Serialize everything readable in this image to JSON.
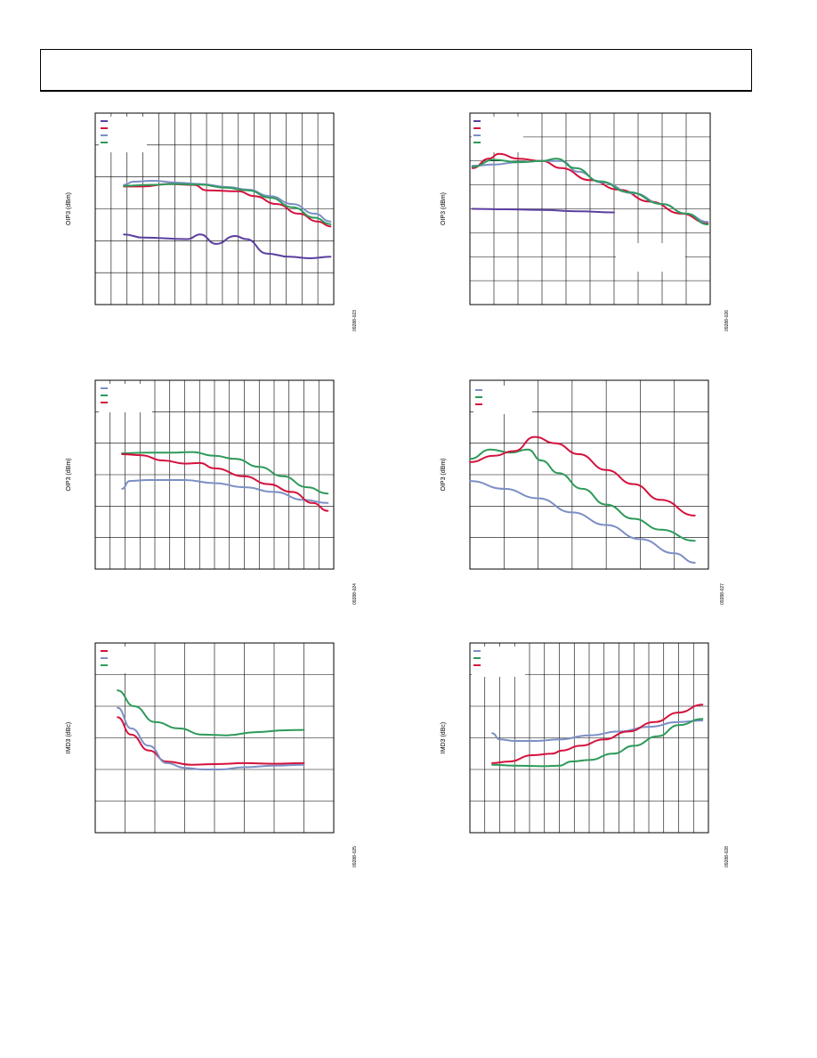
{
  "page": {
    "header_text": ""
  },
  "colors": {
    "purple": "#5b3ea0",
    "red": "#d4123d",
    "blue": "#7b8fc4",
    "green": "#2e9a5a"
  },
  "chart_data": [
    {
      "type": "line",
      "ylabel": "OIP3 (dBm)",
      "fig_code": "09288-023",
      "grid": true,
      "xlim": [
        0,
        15
      ],
      "ylim": [
        0,
        6
      ],
      "legend_placement": "top-left",
      "series": [
        {
          "color": "purple",
          "points": [
            [
              1.8,
              2.2
            ],
            [
              3,
              2.1
            ],
            [
              5.8,
              2.05
            ],
            [
              6.6,
              2.2
            ],
            [
              7.6,
              1.9
            ],
            [
              8.8,
              2.15
            ],
            [
              9.5,
              2.05
            ],
            [
              10.8,
              1.6
            ],
            [
              12.2,
              1.5
            ],
            [
              13.5,
              1.45
            ],
            [
              14.8,
              1.5
            ]
          ]
        },
        {
          "color": "red",
          "points": [
            [
              1.8,
              3.7
            ],
            [
              3,
              3.7
            ],
            [
              4.6,
              3.78
            ],
            [
              6.2,
              3.75
            ],
            [
              7,
              3.58
            ],
            [
              9,
              3.55
            ],
            [
              10,
              3.4
            ],
            [
              11.4,
              3.15
            ],
            [
              12.8,
              2.85
            ],
            [
              14,
              2.6
            ],
            [
              14.8,
              2.45
            ]
          ]
        },
        {
          "color": "blue",
          "points": [
            [
              1.8,
              3.75
            ],
            [
              2.4,
              3.85
            ],
            [
              3.6,
              3.88
            ],
            [
              5.2,
              3.82
            ],
            [
              6.6,
              3.78
            ],
            [
              8.4,
              3.68
            ],
            [
              9.6,
              3.6
            ],
            [
              11,
              3.4
            ],
            [
              12.4,
              3.15
            ],
            [
              13.8,
              2.85
            ],
            [
              14.8,
              2.6
            ]
          ]
        },
        {
          "color": "green",
          "points": [
            [
              1.8,
              3.72
            ],
            [
              3.4,
              3.75
            ],
            [
              5,
              3.78
            ],
            [
              6.6,
              3.76
            ],
            [
              8.2,
              3.66
            ],
            [
              9.6,
              3.58
            ],
            [
              11,
              3.35
            ],
            [
              12.4,
              3.05
            ],
            [
              13.8,
              2.72
            ],
            [
              14.8,
              2.52
            ]
          ]
        }
      ]
    },
    {
      "type": "line",
      "ylabel": "OIP3 (dBm)",
      "fig_code": "09288-026",
      "grid": true,
      "xlim": [
        0,
        10
      ],
      "ylim": [
        0,
        8
      ],
      "legend_placement": "top-left",
      "series": [
        {
          "color": "purple",
          "points": [
            [
              0.1,
              4
            ],
            [
              1.5,
              3.98
            ],
            [
              3,
              3.95
            ],
            [
              4.5,
              3.9
            ],
            [
              6,
              3.85
            ]
          ]
        },
        {
          "color": "red",
          "points": [
            [
              0.1,
              5.7
            ],
            [
              0.8,
              6.1
            ],
            [
              1.2,
              6.3
            ],
            [
              2,
              6.1
            ],
            [
              3,
              6
            ],
            [
              3.8,
              5.7
            ],
            [
              5,
              5.2
            ],
            [
              6.2,
              4.8
            ],
            [
              7.5,
              4.3
            ],
            [
              8.8,
              3.8
            ],
            [
              9.9,
              3.4
            ]
          ]
        },
        {
          "color": "blue",
          "points": [
            [
              0.1,
              5.8
            ],
            [
              1,
              5.85
            ],
            [
              2,
              5.95
            ],
            [
              3,
              6
            ],
            [
              3.8,
              6
            ],
            [
              4.5,
              5.55
            ],
            [
              5.5,
              5.1
            ],
            [
              6.8,
              4.65
            ],
            [
              8,
              4.2
            ],
            [
              9,
              3.8
            ],
            [
              9.9,
              3.45
            ]
          ]
        },
        {
          "color": "green",
          "points": [
            [
              0.1,
              5.75
            ],
            [
              1,
              6.05
            ],
            [
              2,
              5.95
            ],
            [
              3,
              6
            ],
            [
              3.6,
              6.1
            ],
            [
              4.4,
              5.7
            ],
            [
              5.4,
              5.15
            ],
            [
              6.6,
              4.7
            ],
            [
              8,
              4.2
            ],
            [
              9,
              3.8
            ],
            [
              9.9,
              3.35
            ]
          ]
        }
      ]
    },
    {
      "type": "line",
      "ylabel": "OIP3 (dBm)",
      "fig_code": "09288-024",
      "grid": true,
      "xlim": [
        0,
        16
      ],
      "ylim": [
        0,
        6
      ],
      "legend_placement": "top-left",
      "series": [
        {
          "color": "blue",
          "points": [
            [
              1.8,
              2.55
            ],
            [
              2.3,
              2.8
            ],
            [
              3.6,
              2.83
            ],
            [
              6,
              2.83
            ],
            [
              8,
              2.73
            ],
            [
              10,
              2.6
            ],
            [
              12,
              2.45
            ],
            [
              14,
              2.2
            ],
            [
              15.6,
              2.1
            ]
          ]
        },
        {
          "color": "green",
          "points": [
            [
              1.8,
              3.68
            ],
            [
              3.4,
              3.7
            ],
            [
              5,
              3.7
            ],
            [
              6.5,
              3.72
            ],
            [
              8,
              3.6
            ],
            [
              9.4,
              3.5
            ],
            [
              11,
              3.25
            ],
            [
              12.6,
              2.95
            ],
            [
              14.2,
              2.6
            ],
            [
              15.6,
              2.4
            ]
          ]
        },
        {
          "color": "red",
          "points": [
            [
              1.8,
              3.65
            ],
            [
              3,
              3.62
            ],
            [
              4.6,
              3.45
            ],
            [
              6,
              3.35
            ],
            [
              7,
              3.37
            ],
            [
              8,
              3.2
            ],
            [
              10,
              2.95
            ],
            [
              11.6,
              2.7
            ],
            [
              13.2,
              2.45
            ],
            [
              14.6,
              2.1
            ],
            [
              15.6,
              1.85
            ]
          ]
        }
      ]
    },
    {
      "type": "line",
      "ylabel": "OIP3 (dBm)",
      "fig_code": "09288-027",
      "grid": true,
      "xlim": [
        0,
        7
      ],
      "ylim": [
        0,
        6
      ],
      "legend_placement": "top-left",
      "series": [
        {
          "color": "blue",
          "points": [
            [
              0,
              2.8
            ],
            [
              1,
              2.55
            ],
            [
              2,
              2.25
            ],
            [
              3,
              1.8
            ],
            [
              4,
              1.4
            ],
            [
              5,
              0.95
            ],
            [
              6,
              0.5
            ],
            [
              6.6,
              0.2
            ]
          ]
        },
        {
          "color": "green",
          "points": [
            [
              0,
              3.5
            ],
            [
              0.6,
              3.8
            ],
            [
              1.2,
              3.7
            ],
            [
              1.7,
              3.8
            ],
            [
              2.1,
              3.45
            ],
            [
              2.6,
              3.05
            ],
            [
              3.3,
              2.55
            ],
            [
              4,
              2.05
            ],
            [
              4.8,
              1.6
            ],
            [
              5.6,
              1.25
            ],
            [
              6.6,
              0.9
            ]
          ]
        },
        {
          "color": "red",
          "points": [
            [
              0,
              3.4
            ],
            [
              0.7,
              3.6
            ],
            [
              1.3,
              3.75
            ],
            [
              1.9,
              4.2
            ],
            [
              2.5,
              4.0
            ],
            [
              3.2,
              3.65
            ],
            [
              4,
              3.15
            ],
            [
              4.8,
              2.7
            ],
            [
              5.6,
              2.2
            ],
            [
              6.6,
              1.7
            ]
          ]
        }
      ]
    },
    {
      "type": "line",
      "ylabel": "IMD3 (dBc)",
      "fig_code": "09288-025",
      "grid": true,
      "xlim": [
        0,
        8
      ],
      "ylim": [
        0,
        6
      ],
      "legend_placement": "top-left",
      "series": [
        {
          "color": "red",
          "points": [
            [
              0.75,
              3.65
            ],
            [
              1.2,
              3.1
            ],
            [
              1.8,
              2.6
            ],
            [
              2.4,
              2.25
            ],
            [
              3.2,
              2.15
            ],
            [
              4,
              2.17
            ],
            [
              5,
              2.2
            ],
            [
              6,
              2.18
            ],
            [
              7,
              2.2
            ]
          ]
        },
        {
          "color": "blue",
          "points": [
            [
              0.75,
              3.95
            ],
            [
              1.2,
              3.3
            ],
            [
              1.8,
              2.75
            ],
            [
              2.4,
              2.2
            ],
            [
              3,
              2.05
            ],
            [
              3.6,
              2.0
            ],
            [
              4.2,
              2.0
            ],
            [
              5,
              2.07
            ],
            [
              6,
              2.12
            ],
            [
              7,
              2.15
            ]
          ]
        },
        {
          "color": "green",
          "points": [
            [
              0.75,
              4.5
            ],
            [
              1.3,
              4.0
            ],
            [
              2,
              3.5
            ],
            [
              2.8,
              3.3
            ],
            [
              3.6,
              3.1
            ],
            [
              4.4,
              3.08
            ],
            [
              5.4,
              3.18
            ],
            [
              6.4,
              3.24
            ],
            [
              7,
              3.25
            ]
          ]
        }
      ]
    },
    {
      "type": "line",
      "ylabel": "IMD3 (dBc)",
      "fig_code": "09288-028",
      "grid": true,
      "xlim": [
        0,
        16
      ],
      "ylim": [
        0,
        6
      ],
      "legend_placement": "top-left",
      "series": [
        {
          "color": "blue",
          "points": [
            [
              1.5,
              3.15
            ],
            [
              2,
              2.95
            ],
            [
              3,
              2.9
            ],
            [
              4.4,
              2.9
            ],
            [
              6,
              2.95
            ],
            [
              8,
              3.08
            ],
            [
              10,
              3.2
            ],
            [
              12,
              3.35
            ],
            [
              14,
              3.5
            ],
            [
              15.6,
              3.55
            ]
          ]
        },
        {
          "color": "green",
          "points": [
            [
              1.5,
              2.15
            ],
            [
              3,
              2.12
            ],
            [
              5,
              2.1
            ],
            [
              6,
              2.12
            ],
            [
              6.8,
              2.25
            ],
            [
              8,
              2.3
            ],
            [
              9.6,
              2.5
            ],
            [
              11,
              2.75
            ],
            [
              12.6,
              3.05
            ],
            [
              14,
              3.4
            ],
            [
              15.6,
              3.6
            ]
          ]
        },
        {
          "color": "red",
          "points": [
            [
              1.5,
              2.2
            ],
            [
              2.6,
              2.25
            ],
            [
              4.2,
              2.45
            ],
            [
              5.5,
              2.5
            ],
            [
              6.2,
              2.6
            ],
            [
              7.4,
              2.75
            ],
            [
              9,
              2.95
            ],
            [
              10.6,
              3.2
            ],
            [
              12.4,
              3.5
            ],
            [
              14,
              3.8
            ],
            [
              15.6,
              4.05
            ]
          ]
        }
      ]
    }
  ]
}
